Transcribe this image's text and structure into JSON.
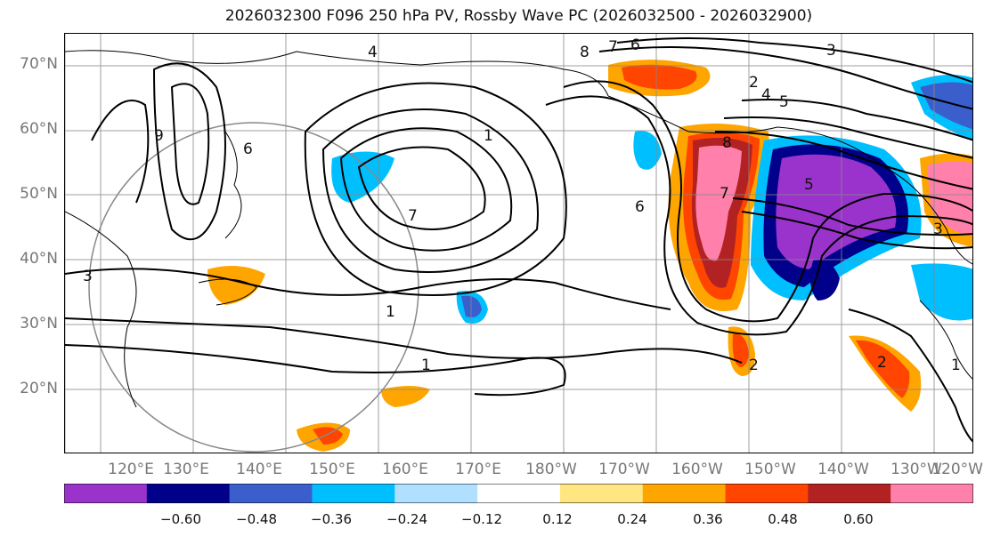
{
  "title": "2026032300 F096 250 hPa PV, Rossby Wave PC (2026032500 - 2026032900)",
  "lat_labels": [
    "70°N",
    "60°N",
    "50°N",
    "40°N",
    "30°N",
    "20°N"
  ],
  "lon_labels": [
    "120°E",
    "130°E",
    "140°E",
    "150°E",
    "160°E",
    "170°E",
    "180°W",
    "170°W",
    "160°W",
    "150°W",
    "140°W",
    "130°W",
    "120°W"
  ],
  "colorbar": {
    "ticks": [
      "−0.60",
      "−0.48",
      "−0.36",
      "−0.24",
      "−0.12",
      "0.12",
      "0.24",
      "0.36",
      "0.48",
      "0.60"
    ],
    "colors": [
      "#9933cc",
      "#00008b",
      "#3a5fcd",
      "#00bfff",
      "#b0e0ff",
      "#ffffff",
      "#ffe680",
      "#ffa500",
      "#ff4500",
      "#b22222",
      "#ff80aa"
    ]
  },
  "contour_labels": [
    "4",
    "8",
    "7",
    "6",
    "3",
    "2",
    "4",
    "5",
    "6",
    "9",
    "1",
    "7",
    "6",
    "7",
    "8",
    "5",
    "3",
    "3",
    "2",
    "1",
    "1",
    "2",
    "1"
  ]
}
